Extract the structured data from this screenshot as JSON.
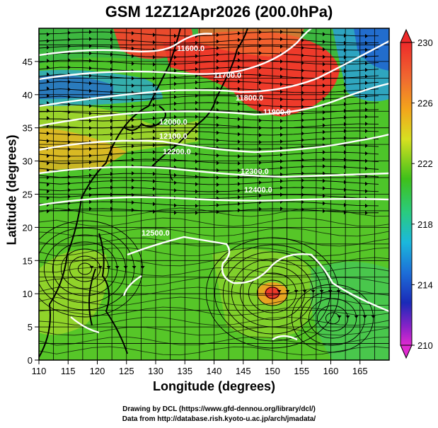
{
  "title": "GSM 12Z12Apr2026 (200.0hPa)",
  "x_axis": {
    "label": "Longitude (degrees)",
    "range": [
      110,
      170
    ],
    "ticks": [
      110,
      115,
      120,
      125,
      130,
      135,
      140,
      145,
      150,
      155,
      160,
      165
    ]
  },
  "y_axis": {
    "label": "Latitude  (degrees)",
    "range": [
      0,
      50
    ],
    "ticks": [
      0,
      5,
      10,
      15,
      20,
      25,
      30,
      35,
      40,
      45
    ]
  },
  "colorbar": {
    "ticks": [
      230,
      226,
      222,
      218,
      214,
      210
    ],
    "range": [
      210,
      230
    ]
  },
  "contour_labels": [
    "11600.0",
    "11700.0",
    "11800.0",
    "11900.0",
    "12000.0",
    "12100.0",
    "12200.0",
    "12300.0",
    "12400.0",
    "12500.0"
  ],
  "credits": {
    "line1": "Drawing by DCL (https://www.gfd-dennou.org/library/dcl/)",
    "line2": "Data from http://database.rish.kyoto-u.ac.jp/arch/jmadata/"
  }
}
